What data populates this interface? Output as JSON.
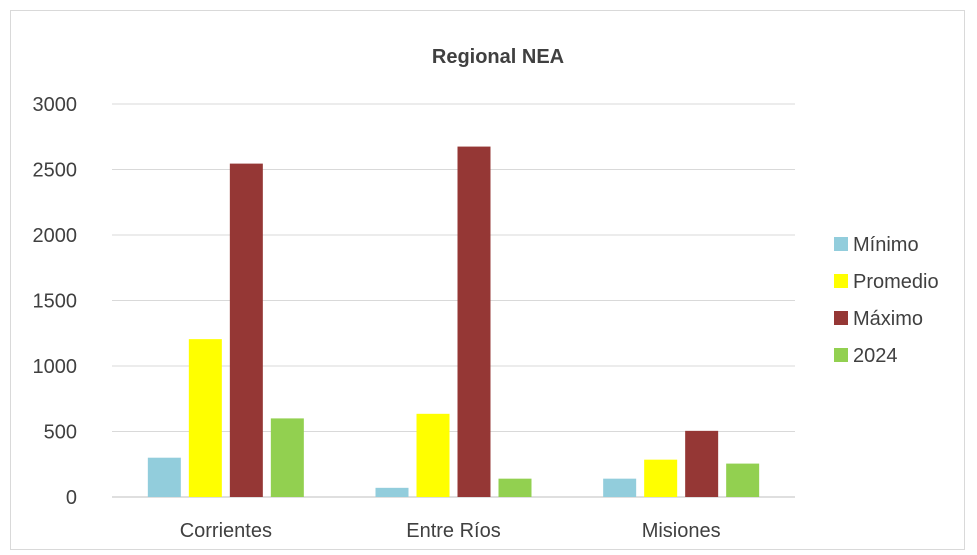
{
  "chart_data": {
    "type": "bar",
    "title": "Regional NEA",
    "categories": [
      "Corrientes",
      "Entre Ríos",
      "Misiones"
    ],
    "series": [
      {
        "name": "Mínimo",
        "color": "#92cddc",
        "values": [
          300,
          70,
          140
        ]
      },
      {
        "name": "Promedio",
        "color": "#ffff00",
        "values": [
          1205,
          635,
          285
        ]
      },
      {
        "name": "Máximo",
        "color": "#953735",
        "values": [
          2545,
          2675,
          505
        ]
      },
      {
        "name": "2024",
        "color": "#92d050",
        "values": [
          600,
          140,
          255
        ]
      }
    ],
    "ylim": [
      0,
      3000
    ],
    "yticks": [
      "0",
      "500",
      "1000",
      "1500",
      "2000",
      "2500",
      "3000"
    ],
    "grid": true,
    "legend_position": "right"
  }
}
